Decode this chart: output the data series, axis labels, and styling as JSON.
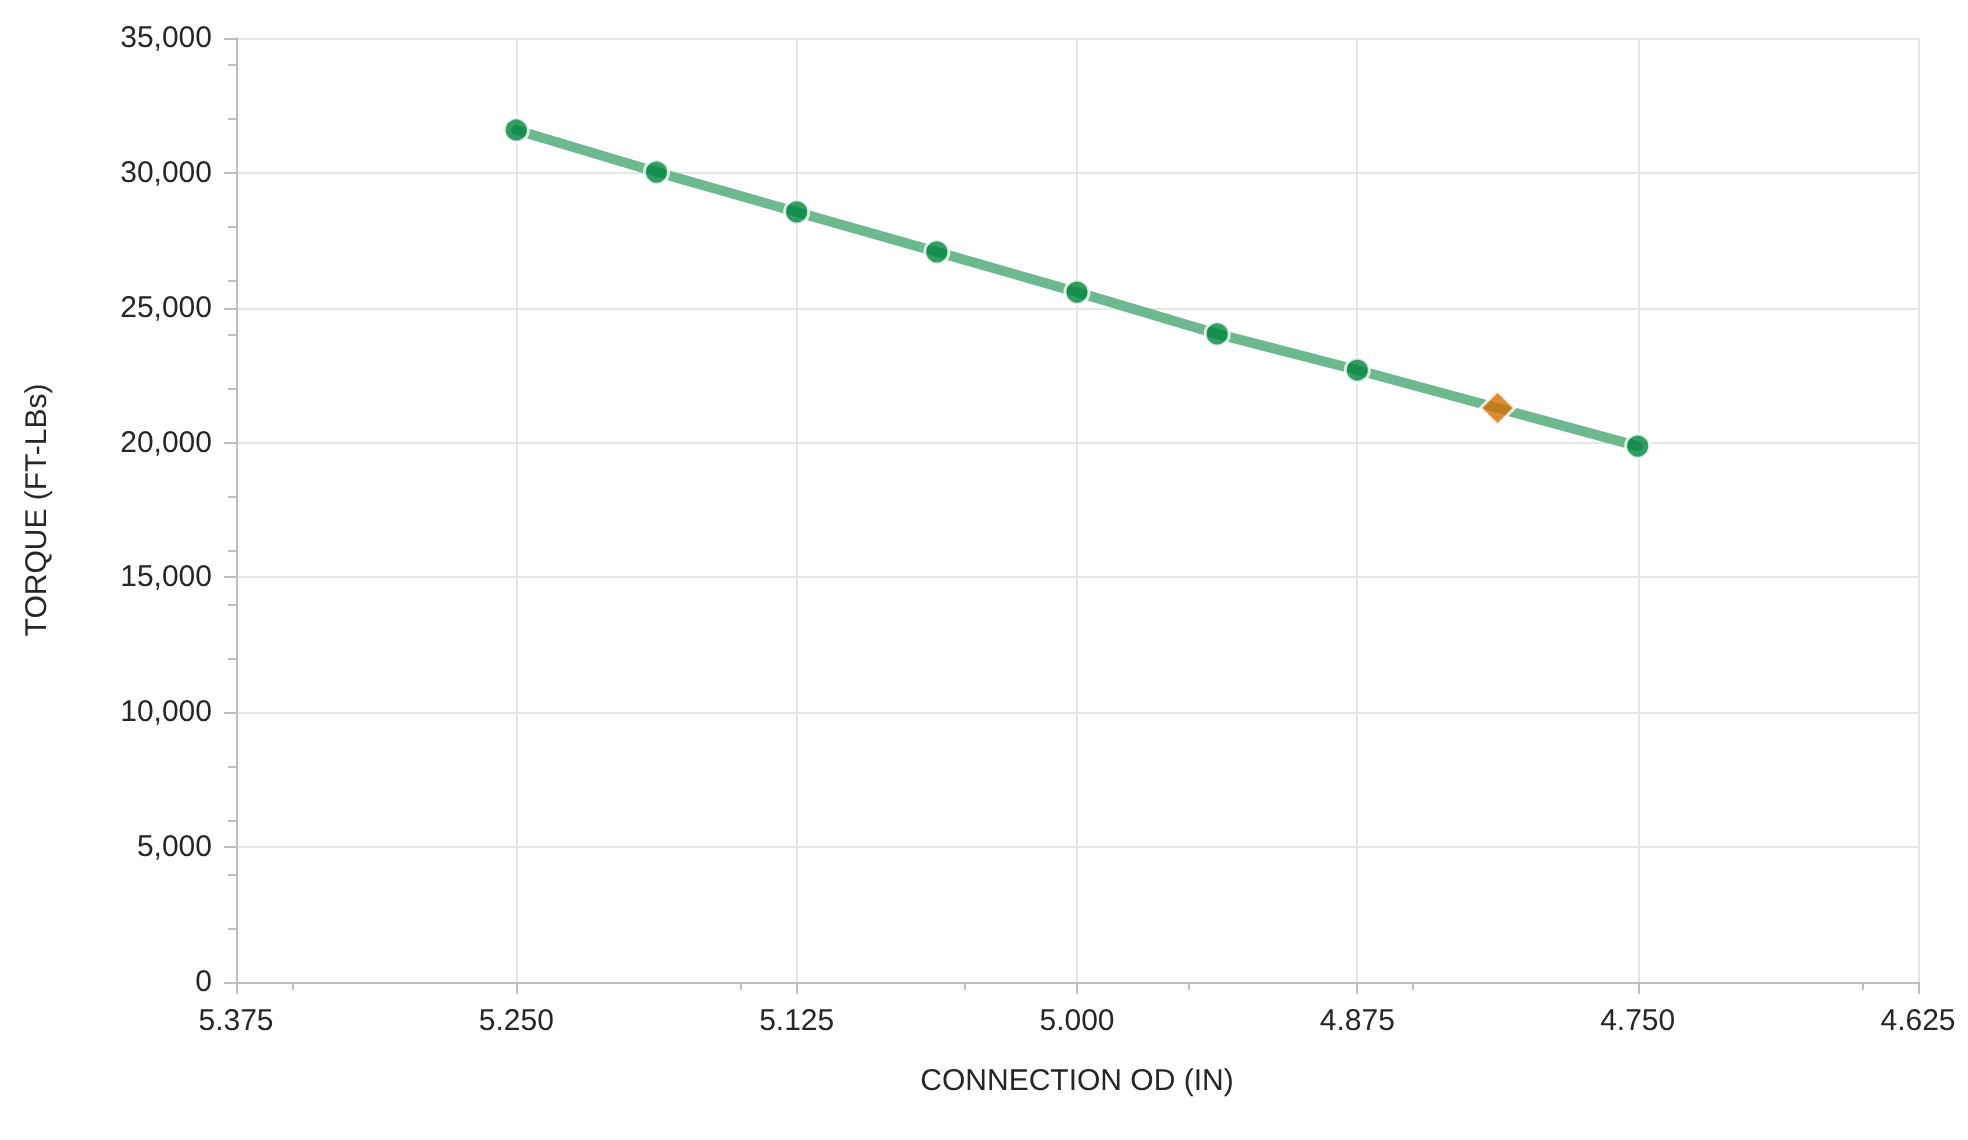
{
  "chart_data": {
    "type": "line",
    "xlabel": "CONNECTION OD (IN)",
    "ylabel": "TORQUE (FT-LBs)",
    "x": [
      5.25,
      5.1875,
      5.125,
      5.0625,
      5.0,
      4.9375,
      4.875,
      4.75
    ],
    "series": [
      {
        "color": "#6cb98f",
        "marker": "none",
        "x": [
          5.25,
          5.1875,
          5.125,
          5.0625,
          5.0,
          4.9375,
          4.875,
          4.8125,
          4.75
        ],
        "values": [
          31590,
          30030,
          28550,
          27070,
          25580,
          24030,
          22690,
          21280,
          19870
        ]
      },
      {
        "type": "scatter",
        "color": "#00843d",
        "marker": "circle",
        "values": [
          31590,
          30030,
          28550,
          27070,
          25580,
          24030,
          22690,
          19870
        ]
      },
      {
        "type": "scatter",
        "color": "#d46f00",
        "marker": "diamond",
        "x": [
          4.8125
        ],
        "values": [
          21280
        ]
      }
    ],
    "xlim": [
      5.375,
      4.625
    ],
    "xticks": [
      {
        "value": 5.375,
        "label": "5.375"
      },
      {
        "value": 5.25,
        "label": "5.250"
      },
      {
        "value": 5.125,
        "label": "5.125"
      },
      {
        "value": 5.0,
        "label": "5.000"
      },
      {
        "value": 4.875,
        "label": "4.875"
      },
      {
        "value": 4.75,
        "label": "4.750"
      },
      {
        "value": 4.625,
        "label": "4.625"
      }
    ],
    "ylim": [
      0,
      35000
    ],
    "yticks": [
      {
        "value": 0,
        "label": "0"
      },
      {
        "value": 5000,
        "label": "5,000"
      },
      {
        "value": 10000,
        "label": "10,000"
      },
      {
        "value": 15000,
        "label": "15,000"
      },
      {
        "value": 20000,
        "label": "20,000"
      },
      {
        "value": 25000,
        "label": "25,000"
      },
      {
        "value": 30000,
        "label": "30,000"
      },
      {
        "value": 35000,
        "label": "35,000"
      }
    ],
    "grid": true
  }
}
